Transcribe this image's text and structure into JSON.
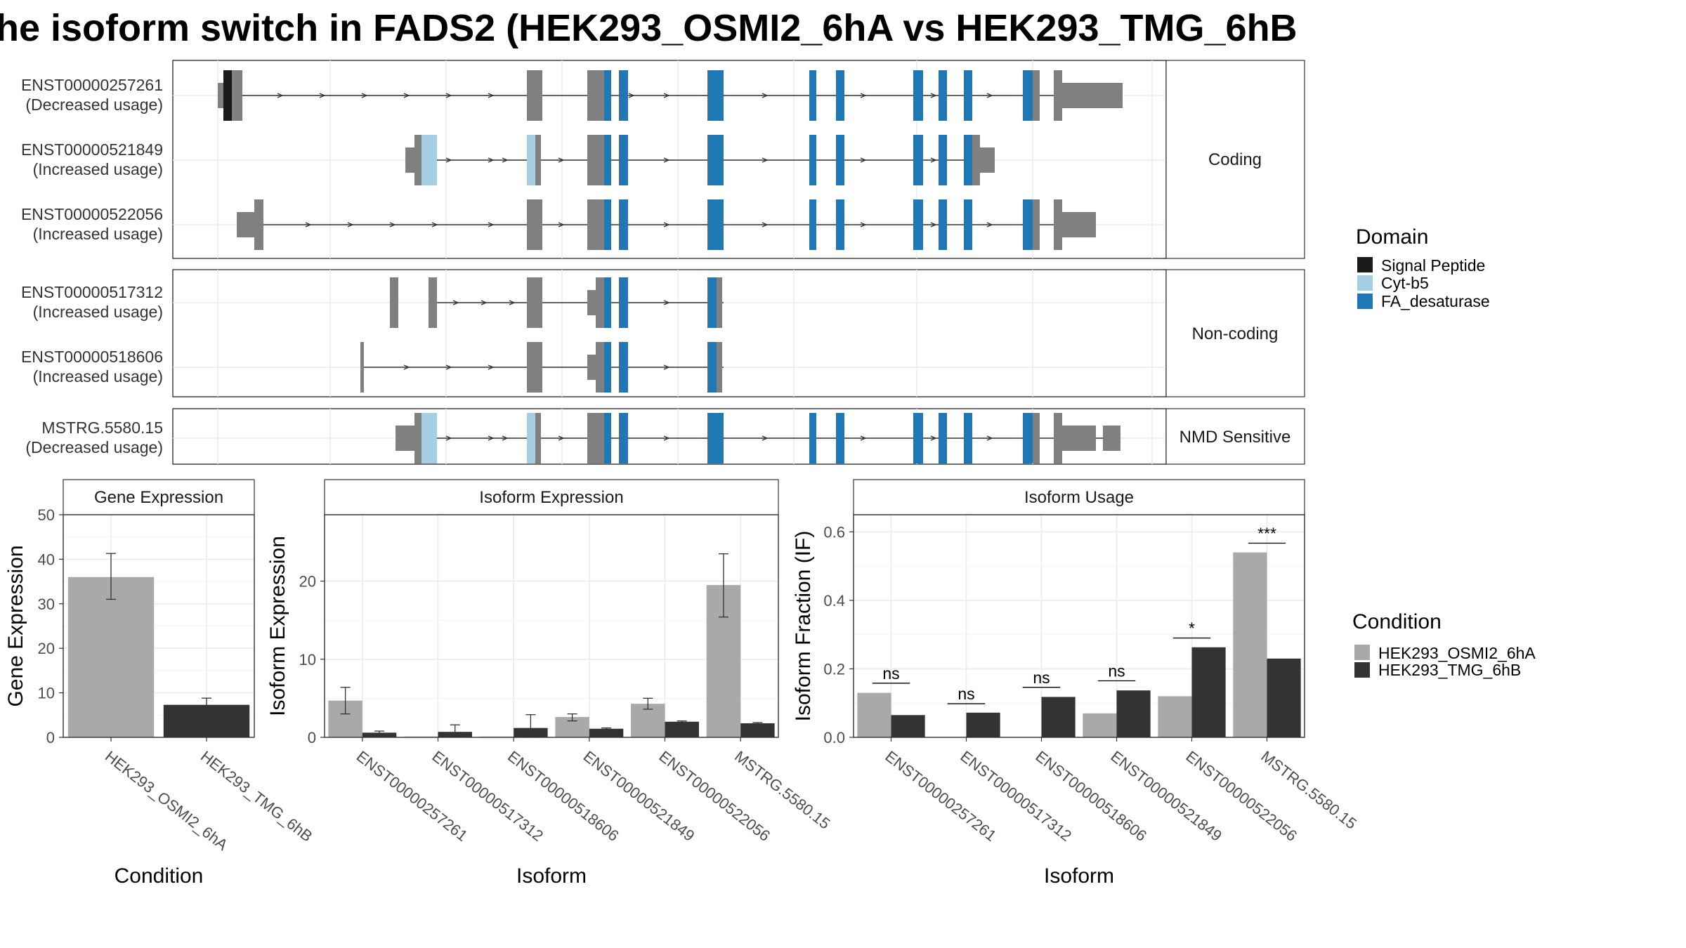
{
  "title": "he isoform switch in FADS2 (HEK293_OSMI2_6hA vs HEK293_TMG_6hB",
  "colors": {
    "exon": "#808080",
    "signal_peptide": "#1a1a1a",
    "cyt_b5": "#a6cee3",
    "fa_desaturase": "#1f78b4",
    "cond_a": "#a9a9a9",
    "cond_b": "#333333"
  },
  "transcripts": {
    "groups": [
      {
        "label": "Coding"
      },
      {
        "label": "Non-coding"
      },
      {
        "label": "NMD Sensitive"
      }
    ],
    "isoforms": [
      {
        "id": "ENST00000257261",
        "usage": "(Decreased usage)"
      },
      {
        "id": "ENST00000521849",
        "usage": "(Increased usage)"
      },
      {
        "id": "ENST00000522056",
        "usage": "(Increased usage)"
      },
      {
        "id": "ENST00000517312",
        "usage": "(Increased usage)"
      },
      {
        "id": "ENST00000518606",
        "usage": "(Increased usage)"
      },
      {
        "id": "MSTRG.5580.15",
        "usage": "(Decreased usage)"
      }
    ]
  },
  "legend_domain": {
    "title": "Domain",
    "items": [
      "Signal Peptide",
      "Cyt-b5",
      "FA_desaturase"
    ]
  },
  "legend_condition": {
    "title": "Condition",
    "items": [
      "HEK293_OSMI2_6hA",
      "HEK293_TMG_6hB"
    ]
  },
  "chart_data": [
    {
      "type": "bar",
      "title": "Gene Expression",
      "xlabel": "Condition",
      "ylabel": "Gene Expression",
      "ylim": [
        0,
        50
      ],
      "yticks": [
        0,
        10,
        20,
        30,
        40,
        50
      ],
      "categories": [
        "HEK293_OSMI2_6hA",
        "HEK293_TMG_6hB"
      ],
      "values": [
        36,
        7.3
      ],
      "error_low": [
        31,
        6.0
      ],
      "error_high": [
        41.3,
        8.8
      ]
    },
    {
      "type": "bar",
      "title": "Isoform Expression",
      "xlabel": "Isoform",
      "ylabel": "Isoform Expression",
      "ylim": [
        0,
        28.5
      ],
      "yticks": [
        0,
        10,
        20
      ],
      "categories": [
        "ENST00000257261",
        "ENST00000517312",
        "ENST00000518606",
        "ENST00000521849",
        "ENST00000522056",
        "MSTRG.5580.15"
      ],
      "series": [
        {
          "name": "HEK293_OSMI2_6hA",
          "values": [
            4.7,
            0.1,
            0.1,
            2.6,
            4.3,
            19.5
          ],
          "error_low": [
            3.0,
            null,
            null,
            2.1,
            3.6,
            15.4
          ],
          "error_high": [
            6.4,
            null,
            null,
            3.0,
            5.0,
            23.5
          ]
        },
        {
          "name": "HEK293_TMG_6hB",
          "values": [
            0.6,
            0.7,
            1.2,
            1.1,
            2.0,
            1.8
          ],
          "error_low": [
            0.4,
            0.2,
            0.1,
            0.9,
            1.8,
            1.6
          ],
          "error_high": [
            0.8,
            1.6,
            2.9,
            1.2,
            2.1,
            1.9
          ]
        }
      ]
    },
    {
      "type": "bar",
      "title": "Isoform Usage",
      "xlabel": "Isoform",
      "ylabel": "Isoform Fraction (IF)",
      "ylim": [
        0,
        0.65
      ],
      "yticks": [
        0.0,
        0.2,
        0.4,
        0.6
      ],
      "ytick_labels": [
        "0.0",
        "0.2",
        "0.4",
        "0.6"
      ],
      "categories": [
        "ENST00000257261",
        "ENST00000517312",
        "ENST00000518606",
        "ENST00000521849",
        "ENST00000522056",
        "MSTRG.5580.15"
      ],
      "series": [
        {
          "name": "HEK293_OSMI2_6hA",
          "values": [
            0.13,
            0.0,
            0.0,
            0.07,
            0.12,
            0.54
          ]
        },
        {
          "name": "HEK293_TMG_6hB",
          "values": [
            0.065,
            0.072,
            0.118,
            0.137,
            0.263,
            0.23
          ]
        }
      ],
      "significance": [
        {
          "label": "ns",
          "y": 0.158
        },
        {
          "label": "ns",
          "y": 0.098
        },
        {
          "label": "ns",
          "y": 0.146
        },
        {
          "label": "ns",
          "y": 0.165
        },
        {
          "label": "*",
          "y": 0.29
        },
        {
          "label": "***",
          "y": 0.567
        }
      ]
    }
  ]
}
